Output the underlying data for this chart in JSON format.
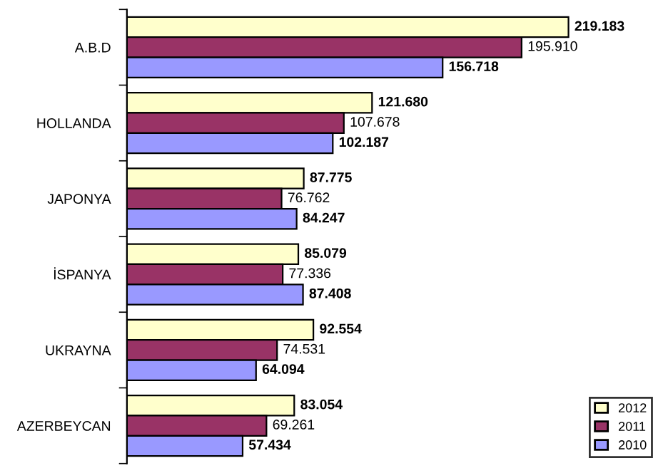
{
  "chart_data": {
    "type": "bar",
    "orientation": "horizontal",
    "categories": [
      "A.B.D",
      "HOLLANDA",
      "JAPONYA",
      "İSPANYA",
      "UKRAYNA",
      "AZERBEYCAN"
    ],
    "series": [
      {
        "name": "2012",
        "color": "#ffffcc",
        "values": [
          219.183,
          121.68,
          87.775,
          85.079,
          92.554,
          83.054
        ],
        "value_labels": [
          "219.183",
          "121.680",
          "87.775",
          "85.079",
          "92.554",
          "83.054"
        ]
      },
      {
        "name": "2011",
        "color": "#993366",
        "values": [
          195.91,
          107.678,
          76.762,
          77.336,
          74.531,
          69.261
        ],
        "value_labels": [
          "195.910",
          "107.678",
          "76.762",
          "77.336",
          "74.531",
          "69.261"
        ]
      },
      {
        "name": "2010",
        "color": "#9999ff",
        "values": [
          156.718,
          102.187,
          84.247,
          87.408,
          64.094,
          57.434
        ],
        "value_labels": [
          "156.718",
          "102.187",
          "84.247",
          "87.408",
          "64.094",
          "57.434"
        ]
      }
    ],
    "legend": "bottom right",
    "grid": false
  }
}
